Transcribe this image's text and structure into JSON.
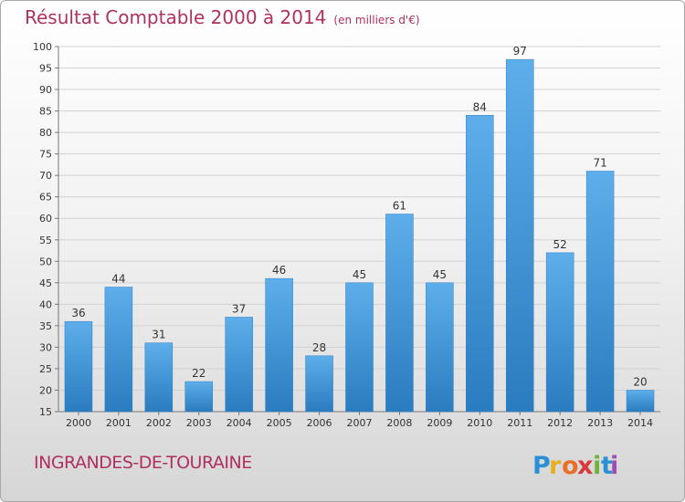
{
  "chart_data": {
    "type": "bar",
    "title": "Résultat Comptable 2000 à 2014",
    "subtitle": "(en milliers d'€)",
    "categories": [
      "2000",
      "2001",
      "2002",
      "2003",
      "2004",
      "2005",
      "2006",
      "2007",
      "2008",
      "2009",
      "2010",
      "2011",
      "2012",
      "2013",
      "2014"
    ],
    "values": [
      36,
      44,
      31,
      22,
      37,
      46,
      28,
      45,
      61,
      45,
      84,
      97,
      52,
      71,
      20
    ],
    "ylim": [
      15,
      100
    ],
    "yticks": [
      15,
      20,
      25,
      30,
      35,
      40,
      45,
      50,
      55,
      60,
      65,
      70,
      75,
      80,
      85,
      90,
      95,
      100
    ],
    "grid": true,
    "bar_color": "#3f95d8"
  },
  "commune": "INGRANDES-DE-TOURAINE",
  "logo": {
    "text": "Proxiti",
    "letters": [
      "P",
      "r",
      "o",
      "x",
      "i",
      "t",
      "i"
    ]
  }
}
